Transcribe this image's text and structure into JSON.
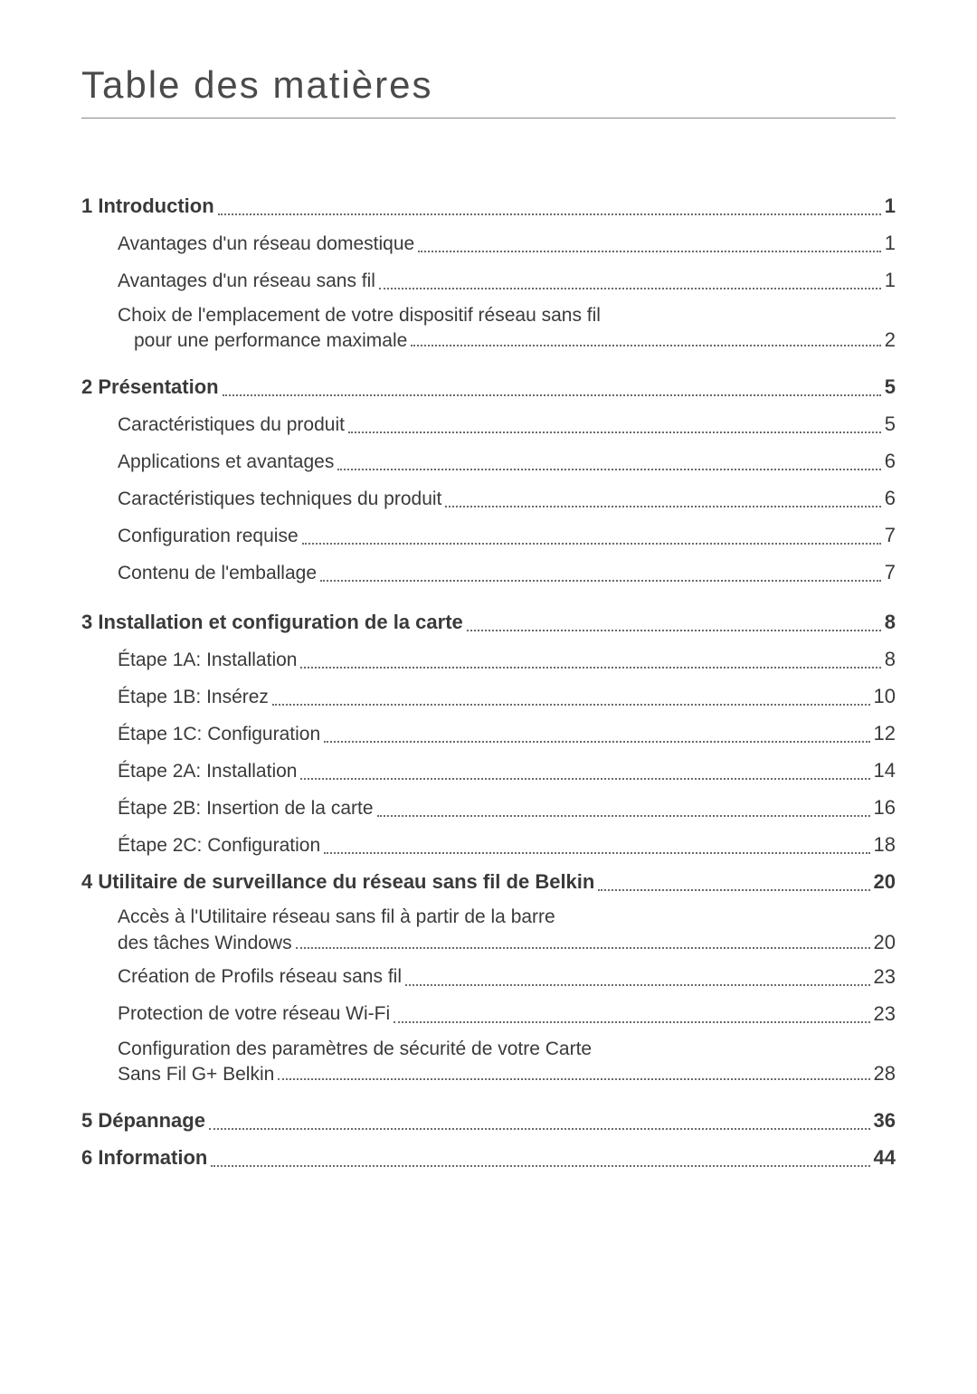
{
  "title": "Table des matières",
  "background_color": "#ffffff",
  "text_color": "#3a3a3a",
  "title_fontsize": 42,
  "body_fontsize": 22,
  "entries": [
    {
      "kind": "bold",
      "text": "1 Introduction",
      "page": "1"
    },
    {
      "kind": "sub",
      "text": "Avantages d'un réseau domestique",
      "page": "1"
    },
    {
      "kind": "sub",
      "text": "Avantages d'un réseau sans fil",
      "page": "1"
    },
    {
      "kind": "sub-multi",
      "line1": "Choix de l'emplacement de votre dispositif réseau sans fil",
      "line2": "pour une performance maximale",
      "page": "2"
    },
    {
      "kind": "spacer"
    },
    {
      "kind": "bold",
      "text": "2 Présentation",
      "page": "5"
    },
    {
      "kind": "sub",
      "text": "Caractéristiques du produit",
      "page": "5"
    },
    {
      "kind": "sub",
      "text": "Applications et avantages",
      "page": "6"
    },
    {
      "kind": "sub",
      "text": "Caractéristiques techniques du produit",
      "page": "6"
    },
    {
      "kind": "sub",
      "text": "Configuration requise",
      "page": "7"
    },
    {
      "kind": "sub",
      "text": "Contenu de l'emballage",
      "page": "7"
    },
    {
      "kind": "spacer"
    },
    {
      "kind": "bold",
      "text": "3 Installation et configuration de la carte",
      "page": "8"
    },
    {
      "kind": "sub",
      "text": "Étape 1A: Installation",
      "page": "8"
    },
    {
      "kind": "sub",
      "text": "Étape 1B: Insérez",
      "page": "10"
    },
    {
      "kind": "sub",
      "text": "Étape 1C: Configuration",
      "page": "12"
    },
    {
      "kind": "sub",
      "text": "Étape 2A: Installation",
      "page": "14"
    },
    {
      "kind": "sub",
      "text": "Étape 2B: Insertion de la carte",
      "page": "16"
    },
    {
      "kind": "sub",
      "text": "Étape 2C: Configuration",
      "page": "18"
    },
    {
      "kind": "bold",
      "text": "4 Utilitaire de surveillance du réseau sans fil de Belkin",
      "page": "20"
    },
    {
      "kind": "sub-multi",
      "line1": "Accès à l'Utilitaire réseau sans fil à partir de la barre",
      "line2": "des tâches Windows",
      "page": "20",
      "noindent2": true
    },
    {
      "kind": "sub",
      "text": "Création de Profils réseau sans fil",
      "page": "23"
    },
    {
      "kind": "sub",
      "text": "Protection de votre réseau Wi-Fi",
      "page": "23"
    },
    {
      "kind": "sub-multi",
      "line1": "Configuration des paramètres de sécurité de votre Carte",
      "line2": "Sans Fil G+ Belkin",
      "page": "28",
      "noindent2": true
    },
    {
      "kind": "spacer"
    },
    {
      "kind": "bold",
      "text": "5 Dépannage",
      "page": "36"
    },
    {
      "kind": "bold",
      "text": "6 Information",
      "page": "44"
    }
  ]
}
